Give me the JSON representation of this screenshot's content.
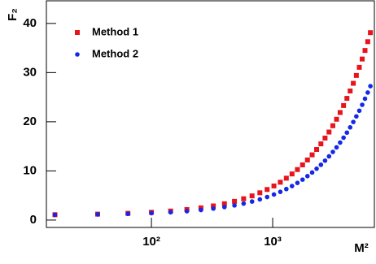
{
  "chart_data": {
    "type": "scatter",
    "x_label": "M²",
    "y_label": "F₂",
    "x": [
      16,
      36,
      64,
      100,
      144,
      196,
      256,
      324,
      400,
      484,
      576,
      676,
      784,
      900,
      1024,
      1156,
      1296,
      1444,
      1600,
      1764,
      1936,
      2116,
      2304,
      2500,
      2704,
      2916,
      3136,
      3364,
      3600,
      3844,
      4096,
      4356,
      4624,
      4900,
      5184,
      5476,
      5776,
      6084,
      6400
    ],
    "series": [
      {
        "name": "Method 1",
        "color": "#e8141c",
        "marker": "square",
        "values": [
          1.09,
          1.21,
          1.37,
          1.58,
          1.84,
          2.14,
          2.48,
          2.88,
          3.32,
          3.81,
          4.34,
          4.92,
          5.55,
          6.22,
          6.94,
          7.7,
          8.52,
          9.38,
          10.28,
          11.23,
          12.23,
          13.27,
          14.36,
          15.5,
          16.68,
          17.91,
          19.19,
          20.51,
          21.88,
          23.3,
          24.76,
          26.26,
          27.82,
          29.42,
          31.07,
          32.76,
          34.5,
          36.29,
          38.12
        ]
      },
      {
        "name": "Method 2",
        "color": "#1428e6",
        "marker": "circle",
        "values": [
          1.07,
          1.15,
          1.26,
          1.41,
          1.59,
          1.8,
          2.05,
          2.33,
          2.64,
          2.98,
          3.36,
          3.77,
          4.21,
          4.69,
          5.2,
          5.74,
          6.31,
          6.92,
          7.56,
          8.23,
          8.94,
          9.68,
          10.45,
          11.25,
          12.09,
          12.96,
          13.86,
          14.79,
          15.76,
          16.76,
          17.79,
          18.86,
          19.96,
          21.09,
          22.25,
          23.45,
          24.68,
          25.94,
          27.24
        ]
      }
    ],
    "xlim": [
      13.6,
      6900
    ],
    "xscale": "log",
    "xticks": [
      {
        "value": 100,
        "label": "10²"
      },
      {
        "value": 1000,
        "label": "10³"
      }
    ],
    "ylim": [
      -1.5,
      44.6
    ],
    "yticks": [
      0,
      10,
      20,
      30,
      40
    ],
    "grid": false,
    "legend": "upper left"
  }
}
